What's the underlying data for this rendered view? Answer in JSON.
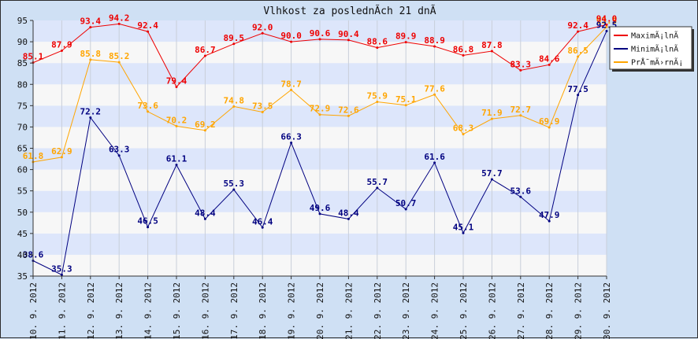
{
  "chart_data": {
    "type": "line",
    "title": "Vlhkost za poslednÃ­ch 21 dnÃ­",
    "categories": [
      "10. 9. 2012",
      "11. 9. 2012",
      "12. 9. 2012",
      "13. 9. 2012",
      "14. 9. 2012",
      "15. 9. 2012",
      "16. 9. 2012",
      "17. 9. 2012",
      "18. 9. 2012",
      "19. 9. 2012",
      "20. 9. 2012",
      "21. 9. 2012",
      "22. 9. 2012",
      "23. 9. 2012",
      "24. 9. 2012",
      "25. 9. 2012",
      "26. 9. 2012",
      "27. 9. 2012",
      "28. 9. 2012",
      "29. 9. 2012",
      "30. 9. 2012"
    ],
    "ylim": [
      35,
      95
    ],
    "yticks": [
      35,
      40,
      45,
      50,
      55,
      60,
      65,
      70,
      75,
      80,
      85,
      90,
      95
    ],
    "grid": true,
    "legend_position": "top-right",
    "series": [
      {
        "name": "MaximÃ¡lnÃ­",
        "color": "#ee0000",
        "values": [
          85.1,
          87.9,
          93.4,
          94.2,
          92.4,
          79.4,
          86.7,
          89.5,
          92.0,
          90.0,
          90.6,
          90.4,
          88.6,
          89.9,
          88.9,
          86.8,
          87.8,
          83.3,
          84.6,
          92.4,
          94.0
        ],
        "labels": [
          "85.1",
          "87.9",
          "93.4",
          "94.2",
          "92.4",
          "79.4",
          "86.7",
          "89.5",
          "92.0",
          "90.0",
          "90.6",
          "90.4",
          "88.6",
          "89.9",
          "88.9",
          "86.8",
          "87.8",
          "83.3",
          "84.6",
          "92.4",
          "94.0"
        ]
      },
      {
        "name": "MinimÃ¡lnÃ­",
        "color": "#000080",
        "values": [
          38.6,
          35.3,
          72.2,
          63.3,
          46.5,
          61.1,
          48.4,
          55.3,
          46.4,
          66.3,
          49.6,
          48.4,
          55.7,
          50.7,
          61.6,
          45.1,
          57.7,
          53.6,
          47.9,
          77.5,
          92.5
        ],
        "labels": [
          "38.6",
          "35.3",
          "72.2",
          "63.3",
          "46.5",
          "61.1",
          "48.4",
          "55.3",
          "46.4",
          "66.3",
          "49.6",
          "48.4",
          "55.7",
          "50.7",
          "61.6",
          "45.1",
          "57.7",
          "53.6",
          "47.9",
          "77.5",
          "92.5"
        ]
      },
      {
        "name": "PrÅ¯mÄ›rnÃ¡",
        "color": "#ffa500",
        "values": [
          61.8,
          62.9,
          85.8,
          85.2,
          73.6,
          70.2,
          69.2,
          74.8,
          73.5,
          78.7,
          72.9,
          72.6,
          75.9,
          75.1,
          77.6,
          68.3,
          71.9,
          72.7,
          69.9,
          86.5,
          93.5
        ],
        "labels": [
          "61.8",
          "62.9",
          "85.8",
          "85.2",
          "73.6",
          "70.2",
          "69.2",
          "74.8",
          "73.5",
          "78.7",
          "72.9",
          "72.6",
          "75.9",
          "75.1",
          "77.6",
          "68.3",
          "71.9",
          "72.7",
          "69.9",
          "86.5",
          "93.5"
        ]
      }
    ]
  }
}
